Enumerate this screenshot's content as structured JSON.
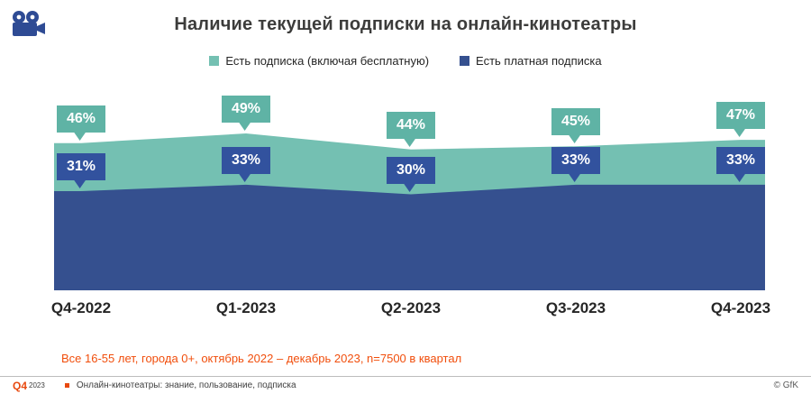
{
  "title": "Наличие текущей подписки на онлайн-кинотеатры",
  "legend": [
    {
      "label": "Есть подписка (включая бесплатную)",
      "color": "#74c0b2"
    },
    {
      "label": "Есть платная подписка",
      "color": "#35508f"
    }
  ],
  "chart_data": {
    "type": "area",
    "categories": [
      "Q4-2022",
      "Q1-2023",
      "Q2-2023",
      "Q3-2023",
      "Q4-2023"
    ],
    "series": [
      {
        "name": "Есть подписка (включая бесплатную)",
        "values": [
          46,
          49,
          44,
          45,
          47
        ],
        "color": "#74c0b2",
        "label_color": "#5fb3a5"
      },
      {
        "name": "Есть платная подписка",
        "values": [
          31,
          33,
          30,
          33,
          33
        ],
        "color": "#35508f",
        "label_color": "#32529e"
      }
    ],
    "value_suffix": "%",
    "ylim": [
      0,
      60
    ],
    "grid": false,
    "legend_position": "top"
  },
  "footnote": "Все 16-55 лет, города 0+, октябрь 2022 – декабрь 2023, n=7500 в квартал",
  "footer": {
    "brand_quarter": "Q4",
    "brand_year": "2023",
    "note": "Онлайн-кинотеатры: знание, пользование, подписка",
    "copyright": "© GfK"
  },
  "icons": {
    "camera": "movie-camera-icon",
    "camera_color": "#2e4b94"
  }
}
